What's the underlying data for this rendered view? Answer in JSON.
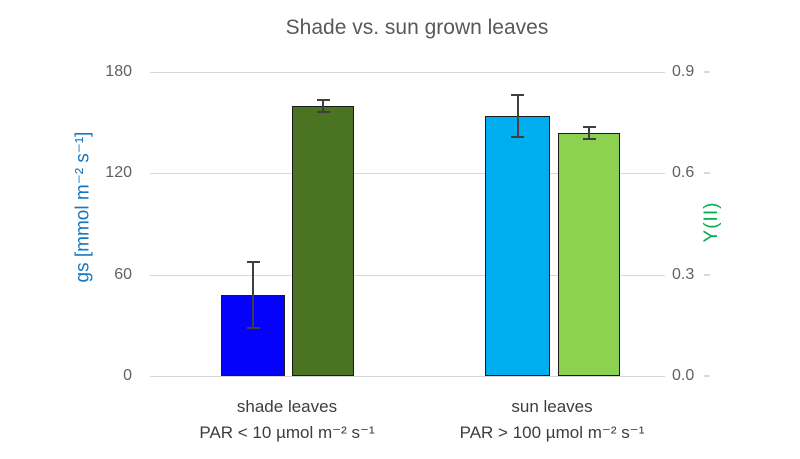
{
  "chart_data": {
    "type": "bar",
    "title": "Shade vs. sun grown leaves",
    "legend": "none",
    "background": "#FFFFFF",
    "grid": true,
    "grid_color": "#D9D9D9",
    "bar_outline_color": "#1A1A1A",
    "error_bar_color": "#3F3F3F",
    "title_color": "#595959",
    "tick_label_color": "#616161",
    "category_label_color": "#3D3D3D",
    "categories": [
      {
        "line1": "shade leaves",
        "line2": "PAR < 10 µmol m⁻² s⁻¹"
      },
      {
        "line1": "sun leaves",
        "line2": "PAR > 100 µmol m⁻² s⁻¹"
      }
    ],
    "axes": {
      "left": {
        "label": "gs [mmol m⁻² s⁻¹]",
        "range": [
          0,
          180
        ],
        "tick_step": 60,
        "tick_labels": [
          "180",
          "120",
          "60",
          "0"
        ],
        "color": "#1778C2"
      },
      "right": {
        "label": "Y(II)",
        "range": [
          0,
          0.9
        ],
        "tick_step": 0.3,
        "tick_labels": [
          "0.9",
          "0.6",
          "0.3",
          "0.0"
        ],
        "color": "#00AE4D"
      }
    },
    "bars": [
      {
        "category": "shade leaves",
        "series": "gs",
        "axis": "left",
        "value": 48,
        "error": 20,
        "color": "#0502FB"
      },
      {
        "category": "shade leaves",
        "series": "Y(II)",
        "axis": "right",
        "value": 0.8,
        "error": 0.02,
        "color": "#4A7322"
      },
      {
        "category": "sun leaves",
        "series": "gs",
        "axis": "left",
        "value": 154,
        "error": 13,
        "color": "#00AEEF"
      },
      {
        "category": "sun leaves",
        "series": "Y(II)",
        "axis": "right",
        "value": 0.72,
        "error": 0.02,
        "color": "#8CD14F"
      }
    ]
  }
}
